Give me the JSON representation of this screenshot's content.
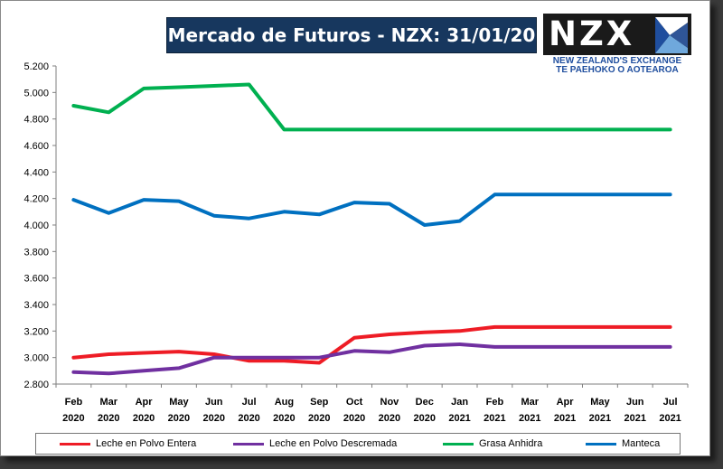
{
  "title": "Mercado de Futuros - NZX: 31/01/20",
  "logo": {
    "text": "NZX",
    "tagline_1": "NEW ZEALAND'S EXCHANGE",
    "tagline_2": "TE PAEHOKO O AOTEAROA"
  },
  "chart_data": {
    "type": "line",
    "title": "Mercado de Futuros - NZX: 31/01/20",
    "xlabel": "",
    "ylabel": "",
    "ylim": [
      2800,
      5200
    ],
    "ytick_step": 200,
    "yticks": [
      "2.800",
      "3.000",
      "3.200",
      "3.400",
      "3.600",
      "3.800",
      "4.000",
      "4.200",
      "4.400",
      "4.600",
      "4.800",
      "5.000",
      "5.200"
    ],
    "grid": false,
    "legend_position": "bottom",
    "categories": [
      [
        "Feb",
        "2020"
      ],
      [
        "Mar",
        "2020"
      ],
      [
        "Apr",
        "2020"
      ],
      [
        "May",
        "2020"
      ],
      [
        "Jun",
        "2020"
      ],
      [
        "Jul",
        "2020"
      ],
      [
        "Aug",
        "2020"
      ],
      [
        "Sep",
        "2020"
      ],
      [
        "Oct",
        "2020"
      ],
      [
        "Nov",
        "2020"
      ],
      [
        "Dec",
        "2020"
      ],
      [
        "Jan",
        "2021"
      ],
      [
        "Feb",
        "2021"
      ],
      [
        "Mar",
        "2021"
      ],
      [
        "Apr",
        "2021"
      ],
      [
        "May",
        "2021"
      ],
      [
        "Jun",
        "2021"
      ],
      [
        "Jul",
        "2021"
      ]
    ],
    "series": [
      {
        "name": "Leche en Polvo Entera",
        "color": "#ee1c25",
        "values": [
          3000,
          3025,
          3035,
          3045,
          3025,
          2975,
          2975,
          2960,
          3150,
          3175,
          3190,
          3200,
          3230,
          3230,
          3230,
          3230,
          3230,
          3230
        ]
      },
      {
        "name": "Leche en Polvo Descremada",
        "color": "#7030a0",
        "values": [
          2890,
          2880,
          2900,
          2920,
          3000,
          3000,
          3000,
          3000,
          3050,
          3040,
          3090,
          3100,
          3080,
          3080,
          3080,
          3080,
          3080,
          3080
        ]
      },
      {
        "name": "Grasa Anhidra",
        "color": "#00b050",
        "values": [
          4900,
          4850,
          5030,
          5040,
          5050,
          5060,
          4720,
          4720,
          4720,
          4720,
          4720,
          4720,
          4720,
          4720,
          4720,
          4720,
          4720,
          4720
        ]
      },
      {
        "name": "Manteca",
        "color": "#0070c0",
        "values": [
          4190,
          4090,
          4190,
          4180,
          4070,
          4050,
          4100,
          4080,
          4170,
          4160,
          4000,
          4030,
          4230,
          4230,
          4230,
          4230,
          4230,
          4230
        ]
      }
    ]
  }
}
